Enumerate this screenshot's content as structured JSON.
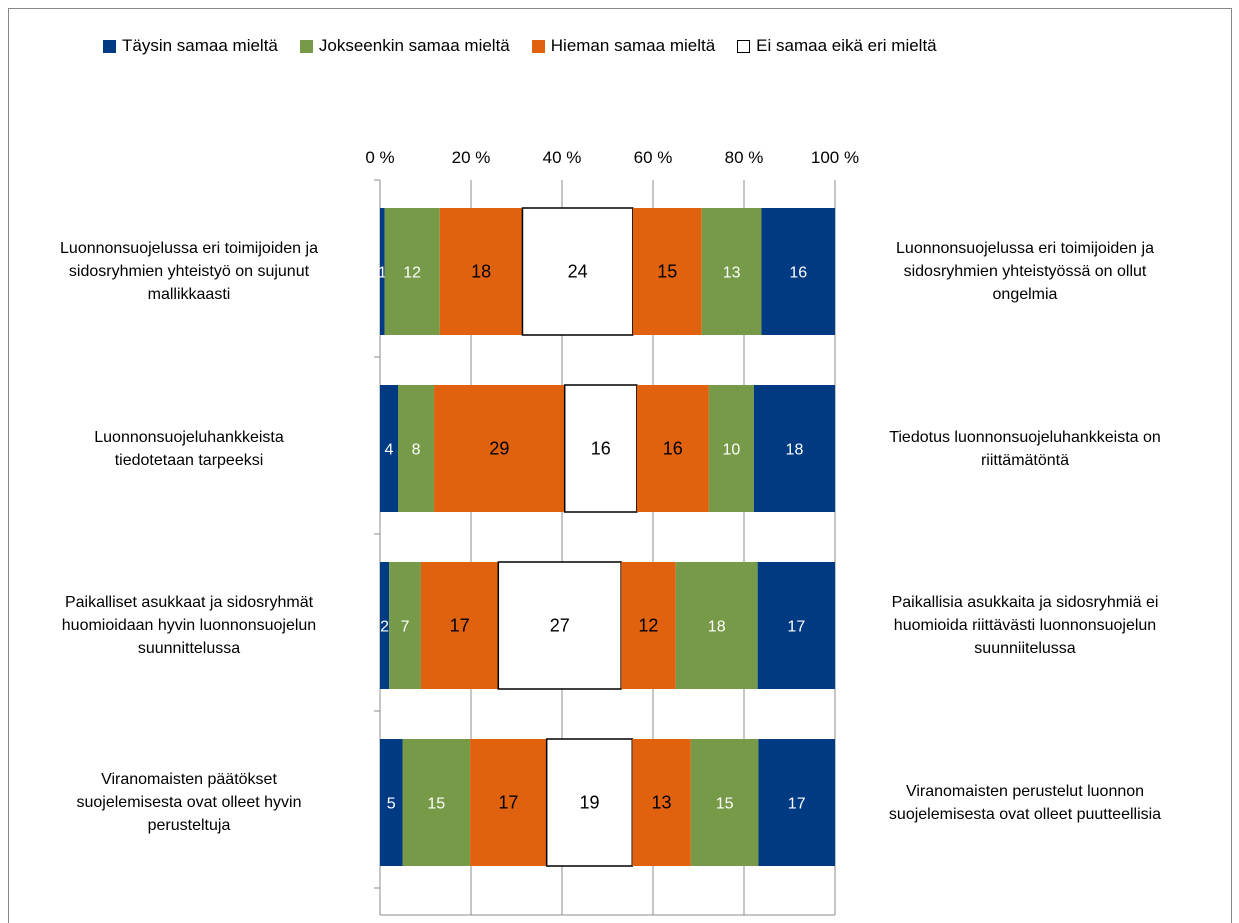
{
  "legend": [
    {
      "label": "Täysin samaa mieltä",
      "color": "#003A82"
    },
    {
      "label": "Jokseenkin samaa mieltä",
      "color": "#779A48"
    },
    {
      "label": "Hieman samaa mieltä",
      "color": "#E0620F"
    },
    {
      "label": "Ei samaa eikä eri mieltä",
      "color": "#FFFFFF"
    }
  ],
  "chart_data": {
    "type": "bar",
    "orientation": "horizontal-stacked-100",
    "xticks": [
      "0 %",
      "20 %",
      "40 %",
      "60 %",
      "80 %",
      "100 %"
    ],
    "xlim": [
      0,
      100
    ],
    "grid": true,
    "legend_position": "top",
    "segment_colors": [
      "#003A82",
      "#779A48",
      "#E0620F",
      "#FFFFFF",
      "#E0620F",
      "#779A48",
      "#003A82"
    ],
    "segment_text_colors": [
      "#FFFFFF",
      "#FFFFFF",
      "#000000",
      "#000000",
      "#000000",
      "#FFFFFF",
      "#FFFFFF"
    ],
    "categories": [
      {
        "left": "Luonnonsuojelussa eri toimijoiden ja\nsidosryhmien yhteistyö on sujunut\nmallikkaasti",
        "right": "Luonnonsuojelussa eri toimijoiden ja\nsidosryhmien yhteistyössä on ollut\nongelmia",
        "values": [
          1,
          12,
          18,
          24,
          15,
          13,
          16
        ]
      },
      {
        "left": "Luonnonsuojeluhankkeista\ntiedotetaan tarpeeksi",
        "right": "Tiedotus luonnonsuojeluhankkeista on\nriittämätöntä",
        "values": [
          4,
          8,
          29,
          16,
          16,
          10,
          18
        ]
      },
      {
        "left": "Paikalliset asukkaat ja sidosryhmät\nhuomioidaan hyvin luonnonsuojelun\nsuunnittelussa",
        "right": "Paikallisia asukkaita ja sidosryhmiä ei\nhuomioida riittävästi luonnonsuojelun\nsuunniitelussa",
        "values": [
          2,
          7,
          17,
          27,
          12,
          18,
          17
        ]
      },
      {
        "left": "Viranomaisten päätökset\nsuojelemisesta ovat olleet hyvin\nperusteltuja",
        "right": "Viranomaisten perustelut luonnon\nsuojelemisesta ovat olleet puutteellisia",
        "values": [
          5,
          15,
          17,
          19,
          13,
          15,
          17
        ]
      }
    ]
  }
}
